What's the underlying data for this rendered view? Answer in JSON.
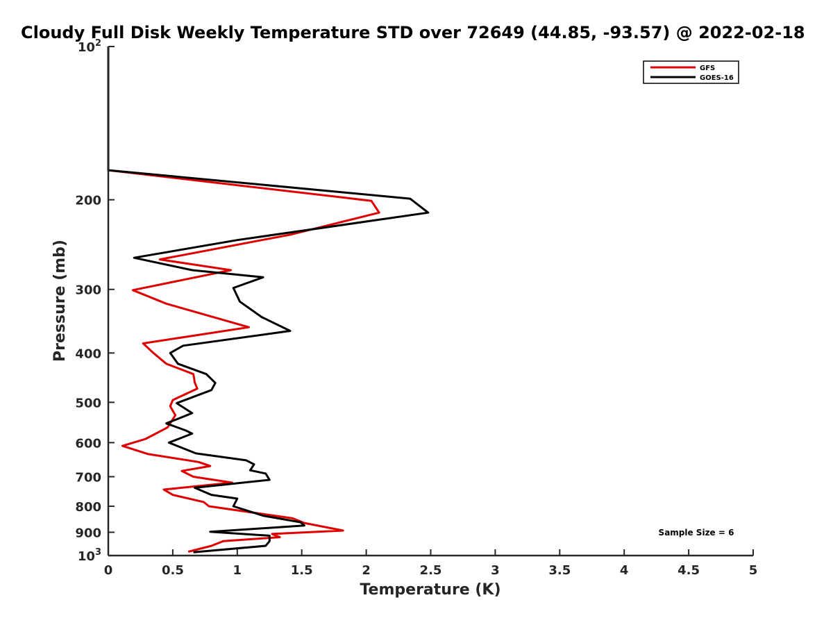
{
  "chart_data": {
    "type": "line",
    "title": "Cloudy Full Disk Weekly Temperature STD over 72649 (44.85, -93.57) @ 2022-02-18",
    "xlabel": "Temperature (K)",
    "ylabel": "Pressure (mb)",
    "xlim": [
      0,
      5
    ],
    "ylim": [
      100,
      1000
    ],
    "y_scale": "log",
    "y_reversed": true,
    "grid": false,
    "legend_position": "top-right",
    "x_ticks": [
      "0",
      "0.5",
      "1",
      "1.5",
      "2",
      "2.5",
      "3",
      "3.5",
      "4",
      "4.5",
      "5"
    ],
    "y_ticks": [
      {
        "value": 100,
        "label": "10",
        "sup": "2"
      },
      {
        "value": 200,
        "label": "200"
      },
      {
        "value": 300,
        "label": "300"
      },
      {
        "value": 400,
        "label": "400"
      },
      {
        "value": 500,
        "label": "500"
      },
      {
        "value": 600,
        "label": "600"
      },
      {
        "value": 700,
        "label": "700"
      },
      {
        "value": 800,
        "label": "800"
      },
      {
        "value": 900,
        "label": "900"
      },
      {
        "value": 1000,
        "label": "10",
        "sup": "3"
      }
    ],
    "annotation": "Sample Size = 6",
    "series": [
      {
        "name": "GFS",
        "color": "#e00000",
        "points": [
          [
            0,
            100
          ],
          [
            0,
            175
          ],
          [
            2.04,
            201
          ],
          [
            2.1,
            212
          ],
          [
            1.42,
            234
          ],
          [
            0.4,
            262
          ],
          [
            0.95,
            275
          ],
          [
            0.19,
            301
          ],
          [
            0.45,
            320
          ],
          [
            1.09,
            356
          ],
          [
            0.27,
            383
          ],
          [
            0.35,
            400
          ],
          [
            0.45,
            420
          ],
          [
            0.66,
            440
          ],
          [
            0.67,
            457
          ],
          [
            0.69,
            470
          ],
          [
            0.5,
            495
          ],
          [
            0.48,
            509
          ],
          [
            0.52,
            530
          ],
          [
            0.46,
            560
          ],
          [
            0.29,
            590
          ],
          [
            0.11,
            609
          ],
          [
            0.31,
            632
          ],
          [
            0.7,
            655
          ],
          [
            0.79,
            667
          ],
          [
            0.57,
            682
          ],
          [
            0.66,
            700
          ],
          [
            0.96,
            719
          ],
          [
            0.43,
            742
          ],
          [
            0.5,
            760
          ],
          [
            0.74,
            785
          ],
          [
            0.78,
            800
          ],
          [
            1.43,
            845
          ],
          [
            1.52,
            863
          ],
          [
            1.82,
            893
          ],
          [
            1.27,
            907
          ],
          [
            1.33,
            920
          ],
          [
            0.89,
            937
          ],
          [
            0.8,
            957
          ],
          [
            0.62,
            983
          ]
        ]
      },
      {
        "name": "GOES-16",
        "color": "#000000",
        "points": [
          [
            0,
            100
          ],
          [
            0,
            175
          ],
          [
            2.34,
            199
          ],
          [
            2.48,
            212
          ],
          [
            1.0,
            240
          ],
          [
            0.2,
            260
          ],
          [
            0.65,
            275
          ],
          [
            1.2,
            284
          ],
          [
            0.97,
            298
          ],
          [
            1.02,
            317
          ],
          [
            1.19,
            340
          ],
          [
            1.41,
            362
          ],
          [
            0.58,
            387
          ],
          [
            0.48,
            400
          ],
          [
            0.54,
            420
          ],
          [
            0.76,
            440
          ],
          [
            0.83,
            458
          ],
          [
            0.8,
            473
          ],
          [
            0.53,
            502
          ],
          [
            0.65,
            525
          ],
          [
            0.45,
            550
          ],
          [
            0.6,
            568
          ],
          [
            0.65,
            576
          ],
          [
            0.47,
            600
          ],
          [
            0.68,
            630
          ],
          [
            1.07,
            650
          ],
          [
            1.13,
            662
          ],
          [
            1.1,
            680
          ],
          [
            1.22,
            690
          ],
          [
            1.25,
            710
          ],
          [
            0.67,
            736
          ],
          [
            0.8,
            760
          ],
          [
            1.0,
            773
          ],
          [
            0.97,
            800
          ],
          [
            1.2,
            835
          ],
          [
            1.49,
            860
          ],
          [
            1.52,
            873
          ],
          [
            0.79,
            898
          ],
          [
            1.25,
            914
          ],
          [
            1.25,
            937
          ],
          [
            1.22,
            957
          ],
          [
            0.66,
            985
          ]
        ]
      }
    ]
  }
}
